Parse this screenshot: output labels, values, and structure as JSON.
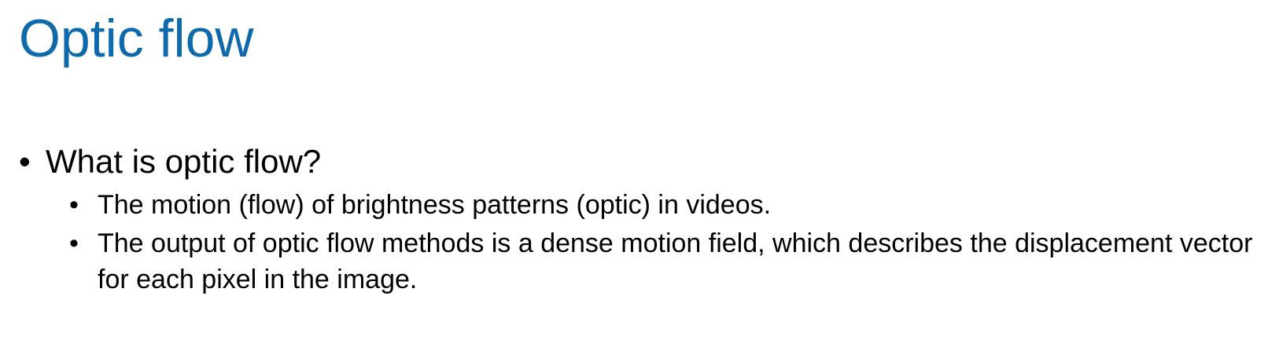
{
  "slide": {
    "title": "Optic flow",
    "bullets": [
      {
        "text": "What is optic flow?",
        "sub_bullets": [
          "The motion (flow) of brightness patterns (optic) in videos.",
          "The output of optic flow methods is a dense motion field, which describes the displacement vector for each pixel in the image."
        ]
      }
    ],
    "bullet_symbol": "•",
    "title_color": "#0f6aac"
  }
}
